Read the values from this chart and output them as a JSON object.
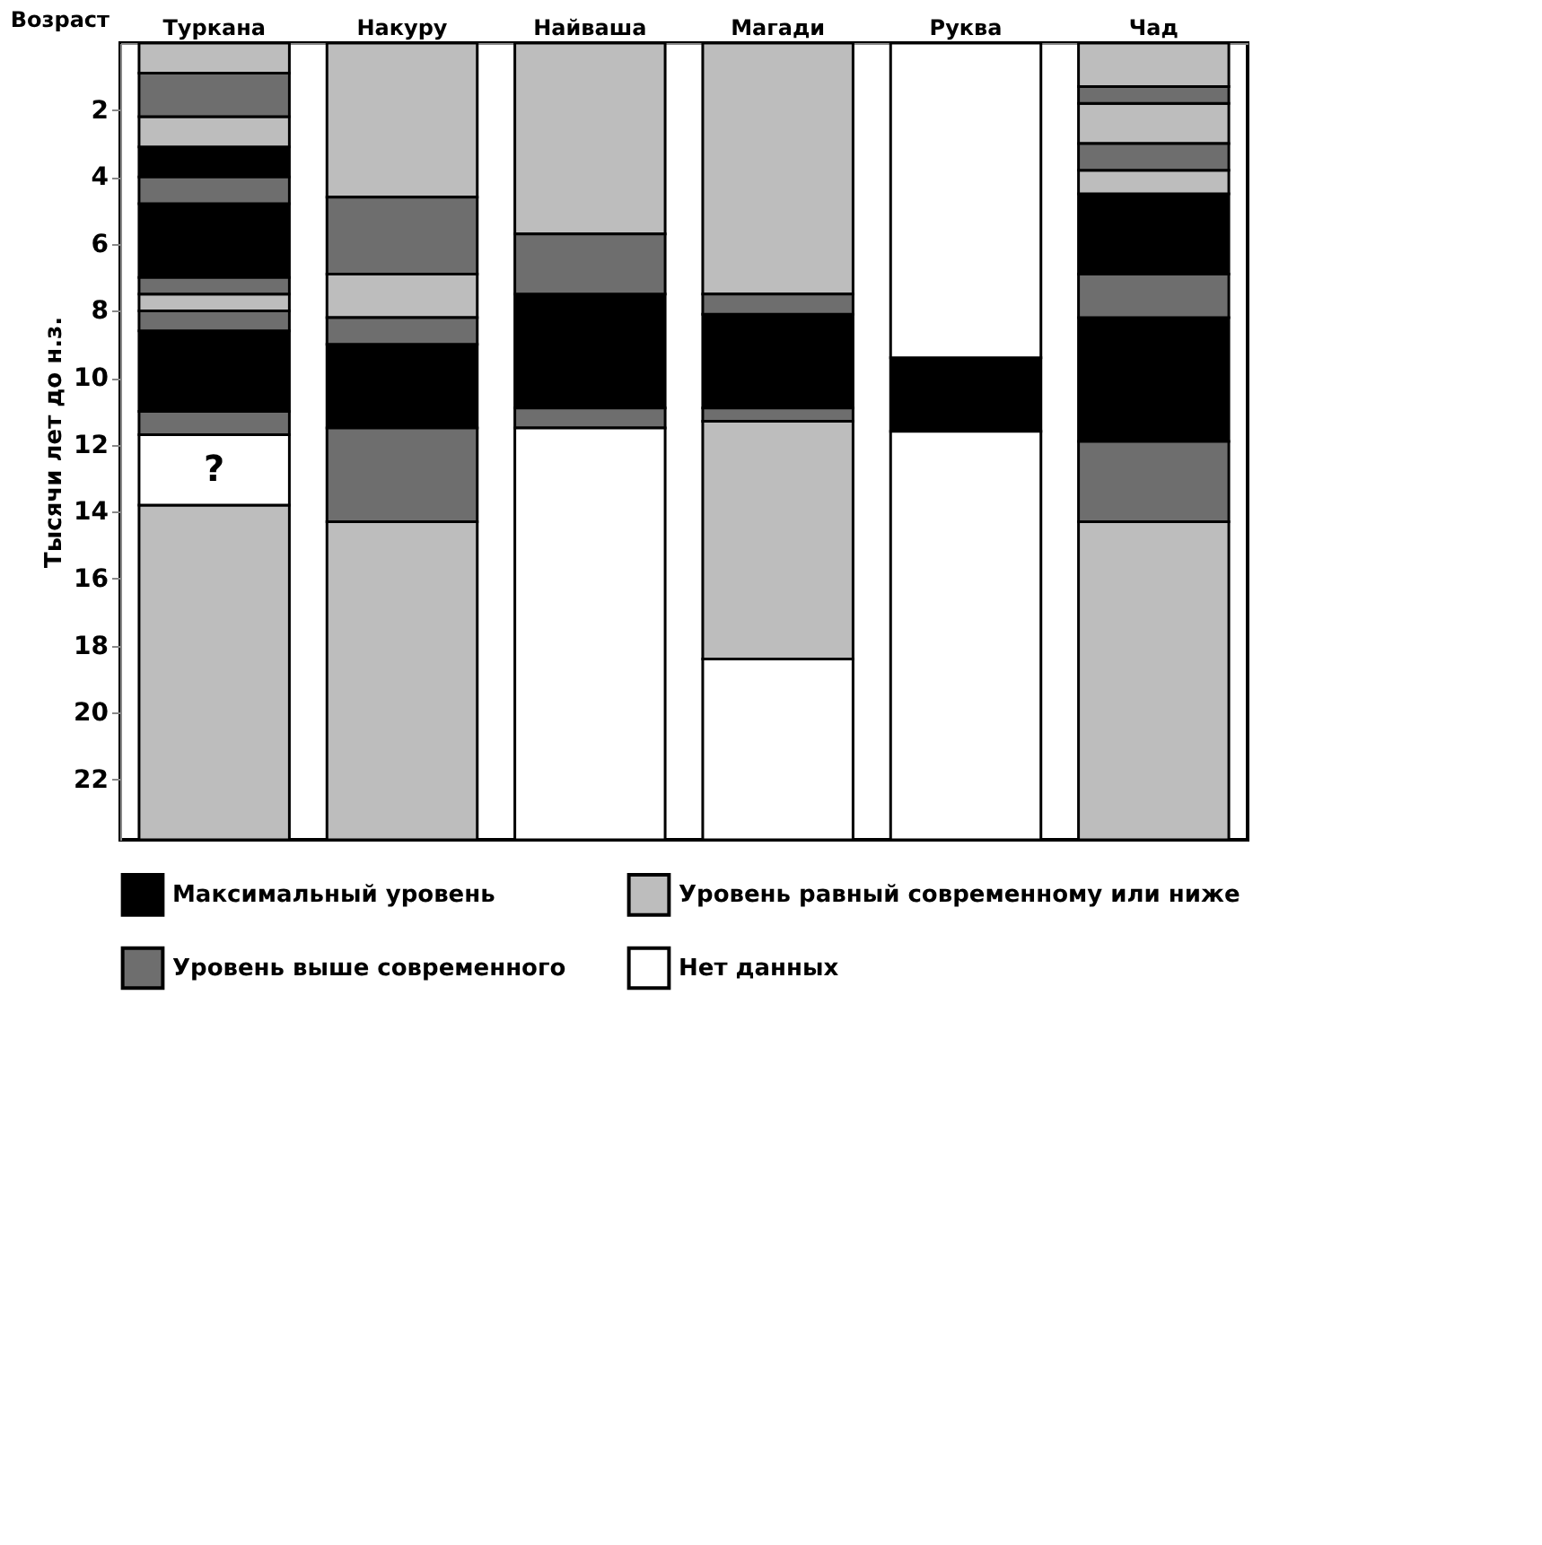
{
  "chart_data": {
    "type": "bar",
    "ylabel": "Тысячи лет до н.з.",
    "annotations": [
      "Возраст",
      "?"
    ],
    "categories": [
      "Туркана",
      "Накуру",
      "Найваша",
      "Магади",
      "Руква",
      "Чад"
    ],
    "ylim": [
      23.8,
      0
    ],
    "yticks": [
      2,
      4,
      6,
      8,
      10,
      12,
      14,
      16,
      18,
      20,
      22
    ],
    "grid": false,
    "legend": "bottom",
    "series": [
      {
        "name": "Максимальный уровень",
        "color": "#000000",
        "base": [
          3.1,
          9.0,
          7.5,
          8.1,
          9.4,
          4.5
        ],
        "values": [
          0.9,
          2.5,
          3.4,
          2.8,
          2.2,
          2.4
        ]
      },
      {
        "color": "#000000",
        "base": [
          4.8,
          null,
          null,
          null,
          null,
          8.2
        ],
        "values": [
          2.2,
          null,
          null,
          null,
          null,
          3.7
        ]
      },
      {
        "color": "#000000",
        "base": [
          8.6,
          null,
          null,
          null,
          null,
          null
        ],
        "values": [
          2.4,
          null,
          null,
          null,
          null,
          null
        ]
      },
      {
        "name": "Уровень равный современному или ниже",
        "color": "#bdbdbd",
        "base": [
          0,
          0,
          0,
          0,
          null,
          0
        ],
        "values": [
          0.9,
          4.6,
          5.7,
          7.5,
          null,
          1.3
        ]
      },
      {
        "color": "#bdbdbd",
        "base": [
          2.2,
          6.9,
          null,
          11.3,
          null,
          1.8
        ],
        "values": [
          0.9,
          1.3,
          null,
          7.1,
          null,
          1.2
        ]
      },
      {
        "color": "#bdbdbd",
        "base": [
          7.5,
          14.3,
          null,
          null,
          null,
          3.8
        ],
        "values": [
          0.5,
          9.5,
          null,
          null,
          null,
          0.7
        ]
      },
      {
        "color": "#bdbdbd",
        "base": [
          13.8,
          null,
          null,
          null,
          null,
          14.3
        ],
        "values": [
          10.0,
          null,
          null,
          null,
          null,
          9.5
        ]
      },
      {
        "name": "Уровень выше современного",
        "color": "#6e6e6e",
        "base": [
          0.9,
          4.6,
          5.7,
          7.5,
          null,
          1.3
        ],
        "values": [
          1.3,
          2.3,
          1.8,
          0.6,
          null,
          0.5
        ]
      },
      {
        "color": "#6e6e6e",
        "base": [
          4.0,
          8.2,
          10.9,
          10.9,
          null,
          3.0
        ],
        "values": [
          0.8,
          0.8,
          0.6,
          0.4,
          null,
          0.8
        ]
      },
      {
        "color": "#6e6e6e",
        "base": [
          7.0,
          11.5,
          null,
          null,
          null,
          6.9
        ],
        "values": [
          0.5,
          2.8,
          null,
          null,
          null,
          1.3
        ]
      },
      {
        "color": "#6e6e6e",
        "base": [
          8.0,
          null,
          null,
          null,
          null,
          11.9
        ],
        "values": [
          0.6,
          null,
          null,
          null,
          null,
          2.4
        ]
      },
      {
        "color": "#6e6e6e",
        "base": [
          11.0,
          null,
          null,
          null,
          null,
          null
        ],
        "values": [
          0.7,
          null,
          null,
          null,
          null,
          null
        ]
      },
      {
        "name": "Нет данных",
        "color": "#ffffff",
        "base": [
          11.7,
          null,
          11.5,
          18.4,
          0,
          null
        ],
        "values": [
          2.1,
          null,
          12.3,
          5.4,
          9.4,
          null
        ]
      },
      {
        "color": "#ffffff",
        "base": [
          null,
          null,
          null,
          null,
          11.6,
          null
        ],
        "values": [
          null,
          null,
          null,
          null,
          12.2,
          null
        ]
      }
    ]
  }
}
